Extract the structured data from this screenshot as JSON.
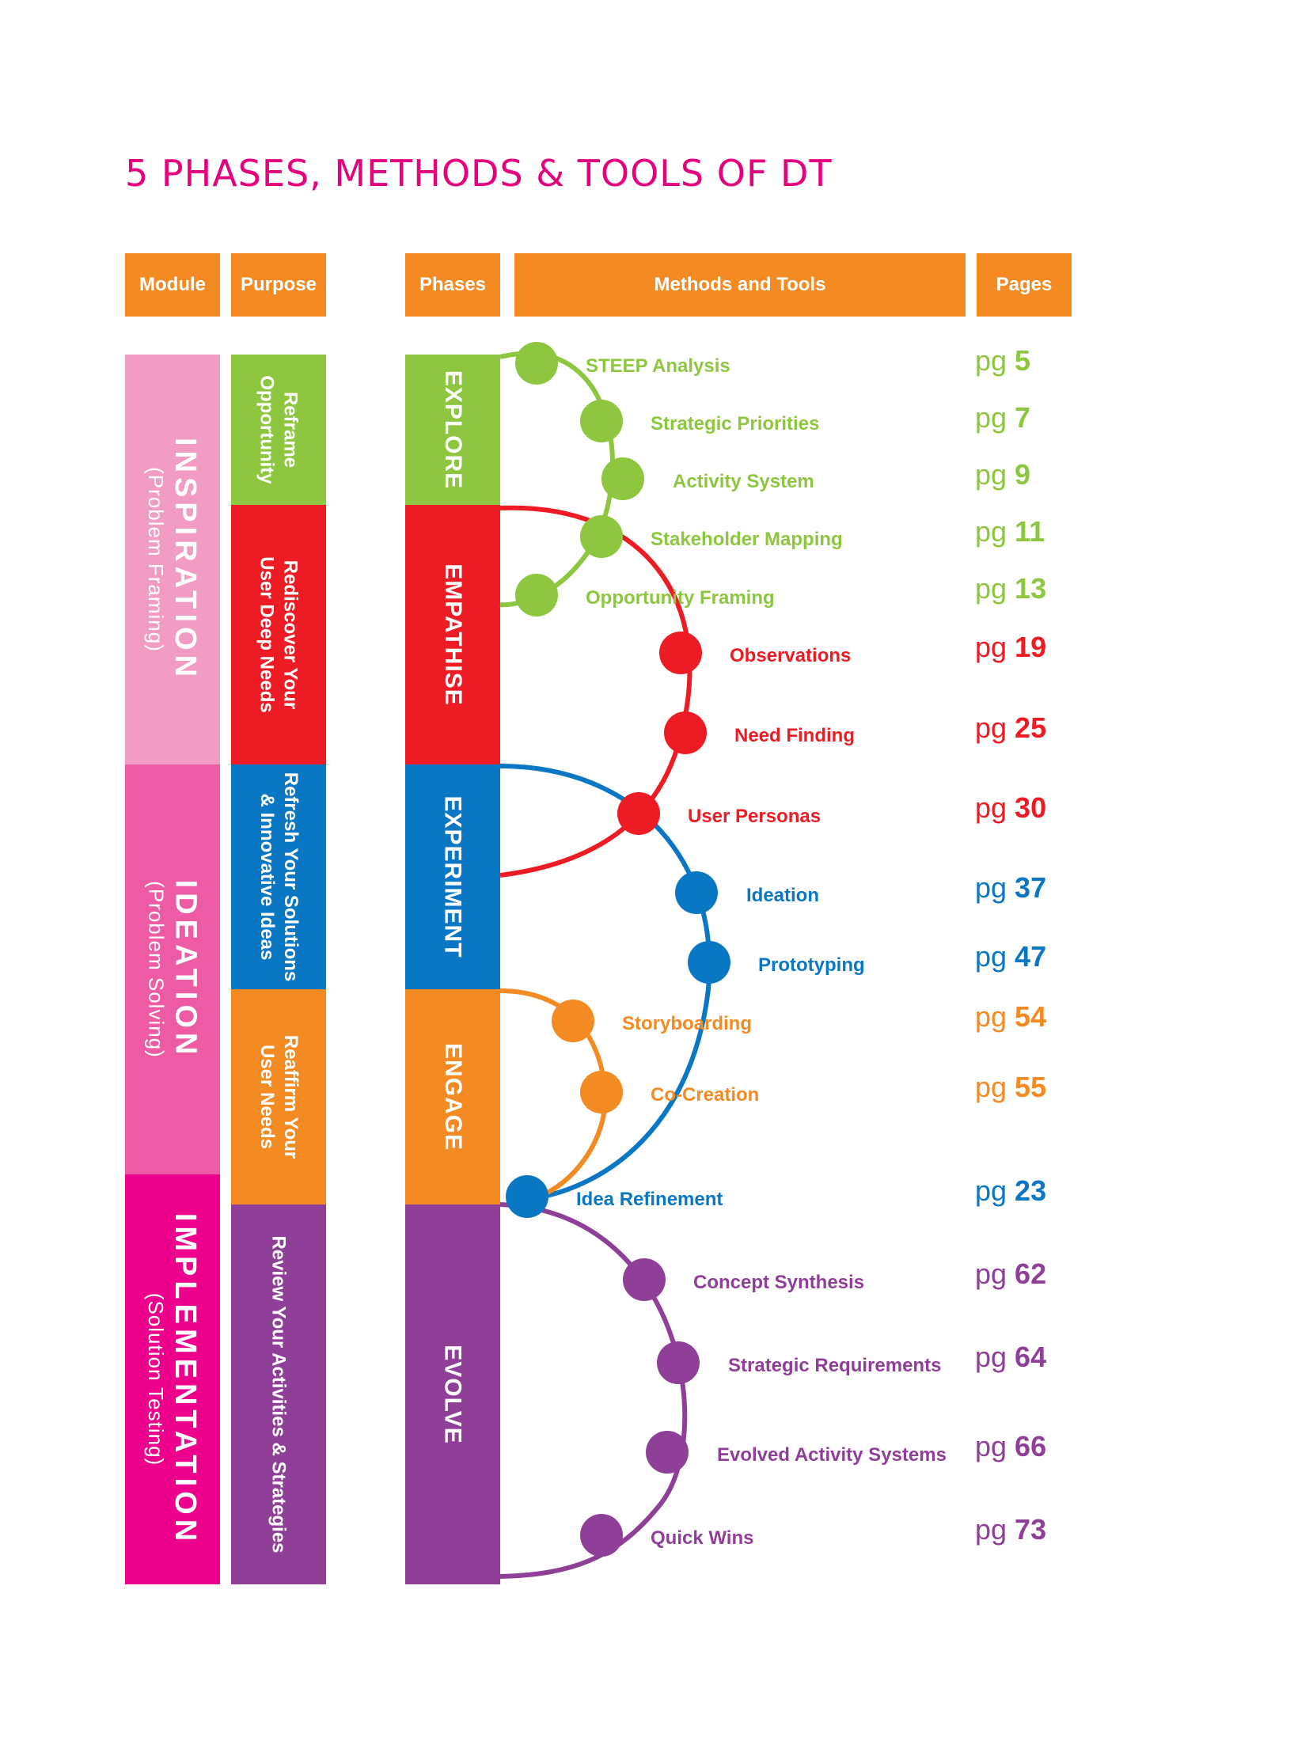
{
  "title": "5 PHASES, METHODS & TOOLS OF DT",
  "headers": {
    "module": "Module",
    "purpose": "Purpose",
    "phases": "Phases",
    "methods": "Methods and Tools",
    "pages": "Pages"
  },
  "modules": [
    {
      "title": "INSPIRATION",
      "subtitle": "(Problem Framing)",
      "color": "#f29bc4"
    },
    {
      "title": "IDEATION",
      "subtitle": "(Problem Solving)",
      "color": "#ee5ba5"
    },
    {
      "title": "IMPLEMENTATION",
      "subtitle": "(Solution Testing)",
      "color": "#ec008c"
    }
  ],
  "purposes": [
    {
      "line1": "Reframe",
      "line2": "Opportunity",
      "color": "#8dc63f"
    },
    {
      "line1": "Rediscover Your",
      "line2": "User Deep Needs",
      "color": "#ed1c24"
    },
    {
      "line1": "Refresh Your Solutions",
      "line2": "& Innovative Ideas",
      "color": "#0a77c4"
    },
    {
      "line1": "Reaffirm Your",
      "line2": "User Needs",
      "color": "#f38a22"
    },
    {
      "line1": "Review Your Activities & Strategies",
      "line2": "",
      "color": "#8f3f98"
    }
  ],
  "phases": [
    {
      "label": "EXPLORE",
      "color": "#8dc63f"
    },
    {
      "label": "EMPATHISE",
      "color": "#ed1c24"
    },
    {
      "label": "EXPERIMENT",
      "color": "#0a77c4"
    },
    {
      "label": "ENGAGE",
      "color": "#f38a22"
    },
    {
      "label": "EVOLVE",
      "color": "#8f3f98"
    }
  ],
  "methods": [
    {
      "name": "STEEP Analysis",
      "page_prefix": "pg",
      "page": "5",
      "phase": "EXPLORE"
    },
    {
      "name": "Strategic Priorities",
      "page_prefix": "pg",
      "page": "7",
      "phase": "EXPLORE"
    },
    {
      "name": "Activity System",
      "page_prefix": "pg",
      "page": "9",
      "phase": "EXPLORE"
    },
    {
      "name": "Stakeholder Mapping",
      "page_prefix": "pg",
      "page": "11",
      "phase": "EXPLORE"
    },
    {
      "name": "Opportunity Framing",
      "page_prefix": "pg",
      "page": "13",
      "phase": "EXPLORE"
    },
    {
      "name": "Observations",
      "page_prefix": "pg",
      "page": "19",
      "phase": "EMPATHISE"
    },
    {
      "name": "Need Finding",
      "page_prefix": "pg",
      "page": "25",
      "phase": "EMPATHISE"
    },
    {
      "name": "User Personas",
      "page_prefix": "pg",
      "page": "30",
      "phase": "EMPATHISE"
    },
    {
      "name": "Ideation",
      "page_prefix": "pg",
      "page": "37",
      "phase": "EXPERIMENT"
    },
    {
      "name": "Prototyping",
      "page_prefix": "pg",
      "page": "47",
      "phase": "EXPERIMENT"
    },
    {
      "name": "Storyboarding",
      "page_prefix": "pg",
      "page": "54",
      "phase": "ENGAGE"
    },
    {
      "name": "Co-Creation",
      "page_prefix": "pg",
      "page": "55",
      "phase": "ENGAGE"
    },
    {
      "name": "Idea Refinement",
      "page_prefix": "pg",
      "page": "23",
      "phase": "EXPERIMENT"
    },
    {
      "name": "Concept Synthesis",
      "page_prefix": "pg",
      "page": "62",
      "phase": "EVOLVE"
    },
    {
      "name": "Strategic Requirements",
      "page_prefix": "pg",
      "page": "64",
      "phase": "EVOLVE"
    },
    {
      "name": "Evolved Activity Systems",
      "page_prefix": "pg",
      "page": "66",
      "phase": "EVOLVE"
    },
    {
      "name": "Quick Wins",
      "page_prefix": "pg",
      "page": "73",
      "phase": "EVOLVE"
    }
  ],
  "colors": {
    "green": "#8dc63f",
    "red": "#ed1c24",
    "blue": "#0a77c4",
    "orange": "#f38a22",
    "purple": "#8f3f98",
    "title_magenta": "#e5007e"
  }
}
